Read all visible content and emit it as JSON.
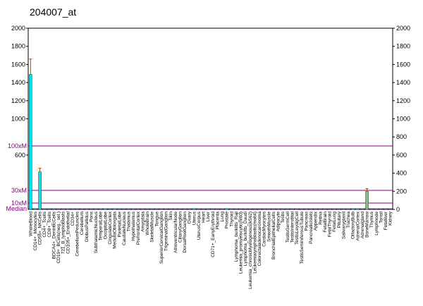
{
  "chart_data": {
    "type": "bar",
    "title": "204007_at",
    "categories": [
      "WholeBlood",
      "CD14+_Monocytes",
      "CD56+_NKCells",
      "CD4+_Tcells",
      "CD8+_Tcells",
      "BDCA4+_DentriticCells",
      "CD19+_BCells(neg._sel.)",
      "721_B_lymphoblasts",
      "CD105+_Endothelial",
      "CD34+",
      "CerebellumPeduncles",
      "Cerebellum",
      "GlobusPallidus",
      "Pons",
      "SubthalamicNucleus",
      "TemporalLobe",
      "OccipitalLobe",
      "CingulateCortex",
      "MedullaOblongata",
      "ParietalLobe",
      "CaudateNucleus",
      "Thalamus",
      "Hypothalamus",
      "PrefrontalCortex",
      "Amygdala",
      "WholeBrain",
      "SkeletalMuscle",
      "Tongue",
      "SuperiorCervicalGanglion",
      "TrigeminalGanglion",
      "Skin",
      "AtrioventricularNode",
      "CiliaryGanglion",
      "DorsalRootGanglion",
      "Ovary",
      "Uterus",
      "UterusCorpus",
      "Heart",
      "Liver",
      "CD71+_EarlyErythroid",
      "Placenta",
      "Lung",
      "Prostate",
      "Thyroid",
      "Lymphoma_burkitts_Raji",
      "Leukemia_promyelocytic(hl60)",
      "Lymphoma_burkitts_Daudi",
      "Leukemia_chronicMyelogenous(k562)",
      "Leukemialymphoblastic(molt4)",
      "Colorectaladenocarcinoma",
      "CardiacMyocytes",
      "SmoothMuscle",
      "BronchialEpithelialCells",
      "Adipocyte",
      "Testis",
      "TestisGermCell",
      "TestisInterstitial",
      "TestisLeydigCell",
      "TestisSeminiferousTubule",
      "Pancreas",
      "PancreaticIslets",
      "Appendix",
      "Retina",
      "FetalBrain",
      "FetalThyroid",
      "FetalLung",
      "Pituitary",
      "Salivarygland",
      "Trachea",
      "OlfactoryBulb",
      "AdrenalCortex",
      "Adrenalgland",
      "BoneMarrow",
      "Thymus",
      "Lymphnode",
      "Tonsil",
      "Fetalliver",
      "Kidney"
    ],
    "values": [
      1490,
      8,
      415,
      6,
      5,
      6,
      5,
      5,
      6,
      5,
      5,
      6,
      5,
      5,
      5,
      6,
      8,
      5,
      8,
      5,
      5,
      5,
      6,
      5,
      5,
      5,
      5,
      5,
      5,
      5,
      5,
      5,
      5,
      5,
      5,
      8,
      5,
      5,
      5,
      5,
      5,
      5,
      8,
      5,
      5,
      5,
      5,
      5,
      5,
      5,
      5,
      5,
      5,
      5,
      5,
      5,
      5,
      5,
      5,
      5,
      5,
      5,
      5,
      5,
      5,
      5,
      5,
      5,
      5,
      8,
      8,
      5,
      200,
      5,
      5,
      5,
      5,
      5
    ],
    "errors": [
      170,
      null,
      40,
      null,
      null,
      null,
      null,
      null,
      null,
      null,
      null,
      null,
      null,
      null,
      null,
      null,
      null,
      null,
      null,
      null,
      null,
      null,
      null,
      null,
      null,
      null,
      null,
      null,
      null,
      null,
      null,
      null,
      null,
      null,
      null,
      null,
      null,
      null,
      null,
      null,
      null,
      null,
      null,
      null,
      null,
      null,
      null,
      null,
      null,
      null,
      null,
      null,
      null,
      null,
      null,
      null,
      null,
      null,
      null,
      null,
      null,
      null,
      null,
      null,
      null,
      null,
      null,
      null,
      null,
      null,
      null,
      null,
      30,
      null,
      null,
      null,
      null,
      null
    ],
    "color": "#00e5f0",
    "highlight_index": 72,
    "highlight_color": "#80c080",
    "error_color": "#c04000",
    "ylim": [
      0,
      2000
    ],
    "yticks": [
      600,
      1000,
      1200,
      1400,
      1600,
      1800,
      2000
    ],
    "y2lim": [
      0,
      2000
    ],
    "y2ticks": [
      0,
      200,
      400,
      600,
      800,
      1000,
      1200,
      1400,
      1600,
      1800,
      2000
    ],
    "reference_lines": [
      {
        "label": "100xM",
        "value": 700
      },
      {
        "label": "30xM",
        "value": 210
      },
      {
        "label": "10xM",
        "value": 70
      },
      {
        "label": "Median",
        "value": 7
      }
    ],
    "reference_color": "#800080"
  }
}
